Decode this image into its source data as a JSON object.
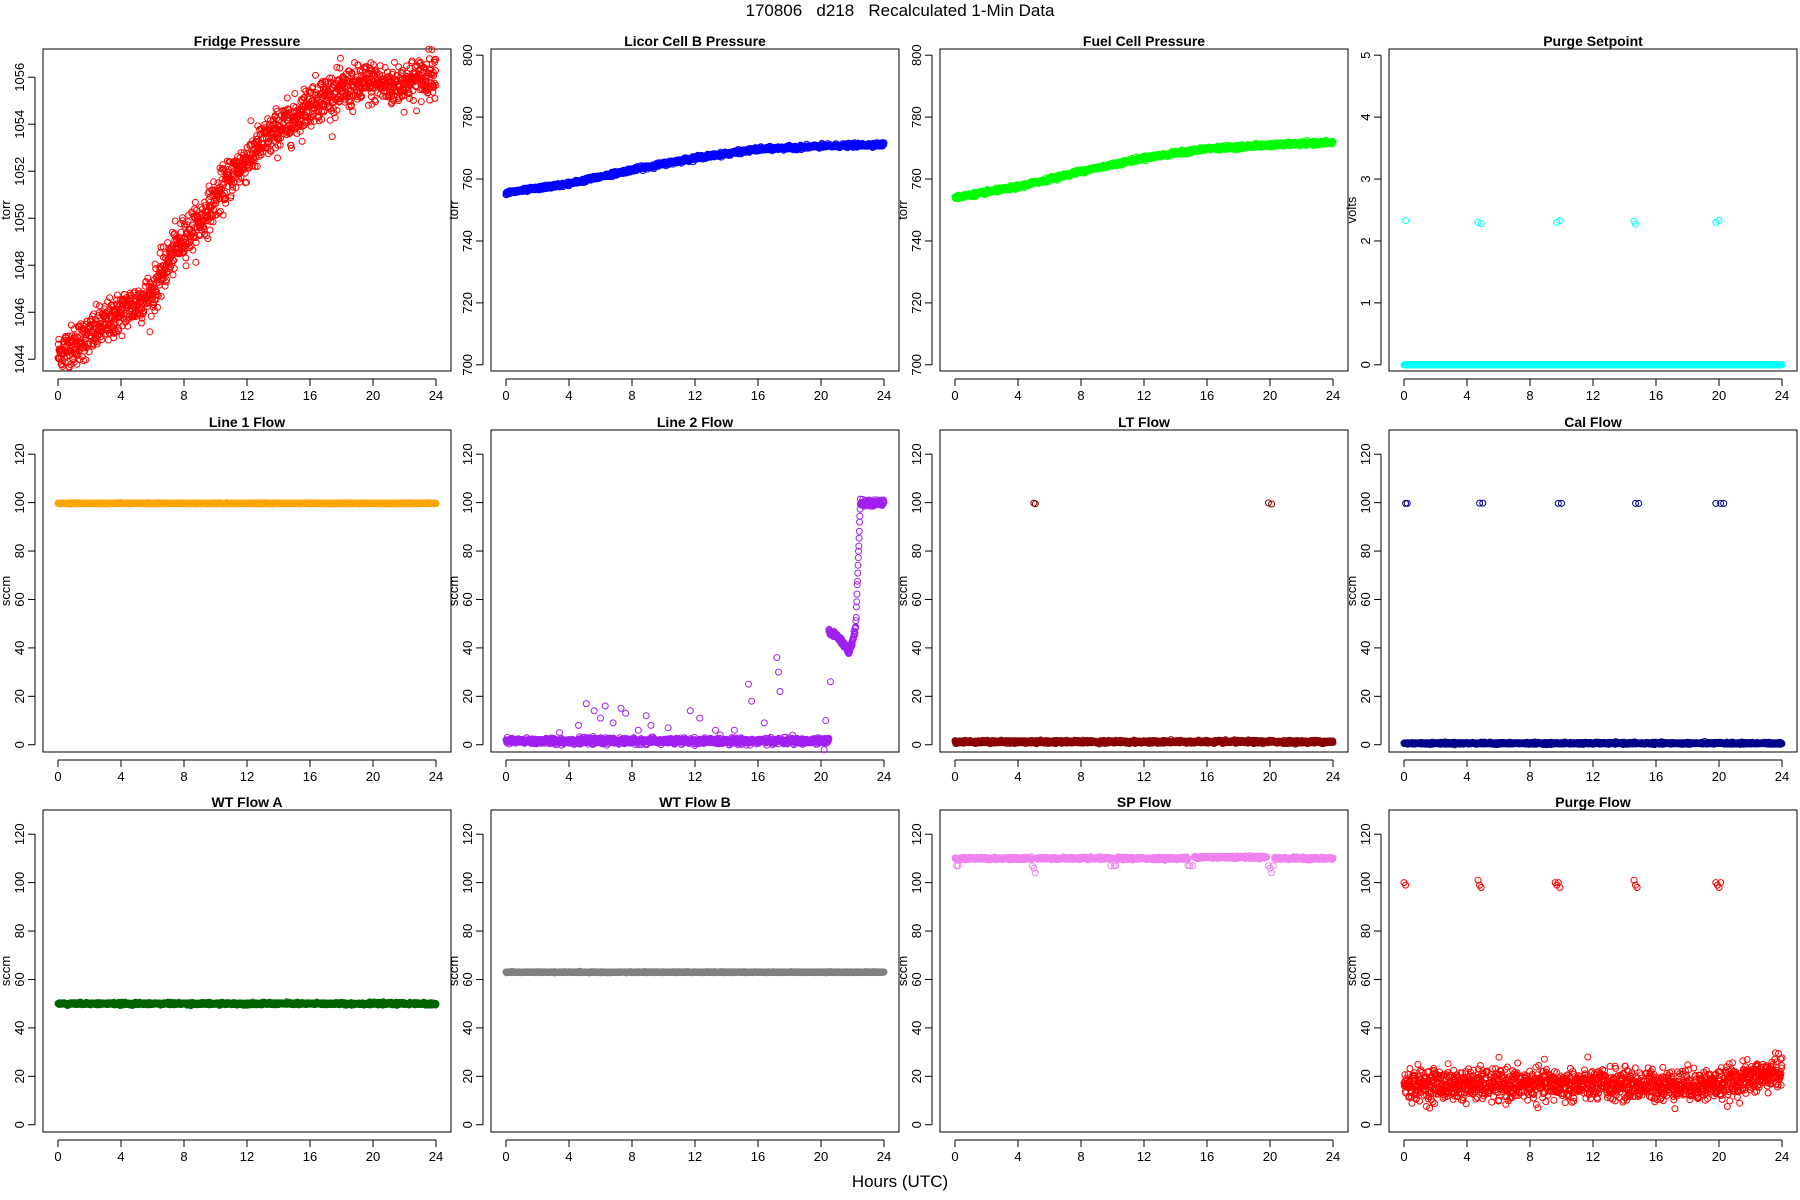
{
  "figure": {
    "title": "170806   d218   Recalculated 1-Min Data",
    "xlabel": "Hours (UTC)"
  },
  "chart_data": [
    {
      "type": "scatter",
      "title": "Fridge Pressure",
      "ylabel": "torr",
      "color": "#ff0000",
      "marker": "open-circle",
      "xlim": [
        0,
        24
      ],
      "xticks": [
        0,
        4,
        8,
        12,
        16,
        20,
        24
      ],
      "ylim": [
        1043.5,
        1057.2
      ],
      "yticks": [
        1044,
        1046,
        1048,
        1050,
        1052,
        1054,
        1056
      ],
      "series": [
        {
          "segments": [
            {
              "x": [
                0,
                2,
                4,
                6,
                7,
                8,
                9,
                10,
                11,
                12,
                13,
                14,
                15,
                16,
                17,
                18,
                19,
                20,
                21,
                22,
                23,
                24
              ],
              "y": [
                1044.2,
                1045.0,
                1046.0,
                1046.8,
                1048.2,
                1049.2,
                1049.8,
                1050.8,
                1051.8,
                1052.5,
                1053.2,
                1053.8,
                1054.2,
                1054.9,
                1055.2,
                1055.4,
                1055.6,
                1055.8,
                1055.6,
                1055.8,
                1055.9,
                1056.3
              ]
            }
          ],
          "noise": 0.45,
          "rare": []
        }
      ]
    },
    {
      "type": "scatter",
      "title": "Licor Cell B Pressure",
      "ylabel": "torr",
      "color": "#0000ff",
      "marker": "open-circle",
      "xlim": [
        0,
        24
      ],
      "xticks": [
        0,
        4,
        8,
        12,
        16,
        20,
        24
      ],
      "ylim": [
        698,
        802
      ],
      "yticks": [
        700,
        720,
        740,
        760,
        780,
        800
      ],
      "series": [
        {
          "segments": [
            {
              "x": [
                0,
                4,
                8,
                12,
                16,
                20,
                24
              ],
              "y": [
                755.5,
                758.5,
                763.0,
                766.8,
                769.6,
                770.6,
                771.2
              ]
            }
          ],
          "noise": 0.3,
          "rare": []
        }
      ]
    },
    {
      "type": "scatter",
      "title": "Fuel Cell Pressure",
      "ylabel": "torr",
      "color": "#00ff00",
      "marker": "open-circle",
      "xlim": [
        0,
        24
      ],
      "xticks": [
        0,
        4,
        8,
        12,
        16,
        20,
        24
      ],
      "ylim": [
        698,
        802
      ],
      "yticks": [
        700,
        720,
        740,
        760,
        780,
        800
      ],
      "series": [
        {
          "segments": [
            {
              "x": [
                0,
                4,
                8,
                12,
                16,
                20,
                24
              ],
              "y": [
                754.0,
                757.5,
                762.5,
                766.8,
                769.8,
                771.0,
                771.8
              ]
            }
          ],
          "noise": 0.3,
          "rare": []
        }
      ]
    },
    {
      "type": "scatter",
      "title": "Purge Setpoint",
      "ylabel": "volts",
      "color": "#00ffff",
      "marker": "open-circle",
      "xlim": [
        0,
        24
      ],
      "xticks": [
        0,
        4,
        8,
        12,
        16,
        20,
        24
      ],
      "ylim": [
        -0.1,
        5.1
      ],
      "yticks": [
        0,
        1,
        2,
        3,
        4,
        5
      ],
      "series": [
        {
          "segments": [
            {
              "x": [
                0,
                24
              ],
              "y": [
                0,
                0
              ]
            }
          ],
          "noise": 0,
          "rare": [
            [
              0.1,
              2.33
            ],
            [
              4.7,
              2.3
            ],
            [
              4.9,
              2.28
            ],
            [
              9.7,
              2.3
            ],
            [
              9.9,
              2.33
            ],
            [
              14.6,
              2.32
            ],
            [
              14.7,
              2.27
            ],
            [
              19.8,
              2.3
            ],
            [
              20.0,
              2.33
            ]
          ]
        }
      ]
    },
    {
      "type": "scatter",
      "title": "Line 1 Flow",
      "ylabel": "sccm",
      "color": "#ffa500",
      "marker": "open-circle",
      "xlim": [
        0,
        24
      ],
      "xticks": [
        0,
        4,
        8,
        12,
        16,
        20,
        24
      ],
      "ylim": [
        -3,
        130
      ],
      "yticks": [
        0,
        20,
        40,
        60,
        80,
        100,
        120
      ],
      "series": [
        {
          "segments": [
            {
              "x": [
                0,
                24
              ],
              "y": [
                99.7,
                99.7
              ]
            }
          ],
          "noise": 0.1,
          "rare": []
        }
      ]
    },
    {
      "type": "scatter",
      "title": "Line 2 Flow",
      "ylabel": "sccm",
      "color": "#a020f0",
      "marker": "open-circle",
      "xlim": [
        0,
        24
      ],
      "xticks": [
        0,
        4,
        8,
        12,
        16,
        20,
        24
      ],
      "ylim": [
        -3,
        130
      ],
      "yticks": [
        0,
        20,
        40,
        60,
        80,
        100,
        120
      ],
      "series": [
        {
          "segments": [
            {
              "x": [
                0,
                20.5
              ],
              "y": [
                1.5,
                1.5
              ]
            },
            {
              "x": [
                20.5,
                21.2,
                21.8,
                22.2
              ],
              "y": [
                47,
                44,
                38,
                48
              ]
            },
            {
              "x": [
                22.2,
                22.5
              ],
              "y": [
                48,
                100
              ]
            },
            {
              "x": [
                22.5,
                24
              ],
              "y": [
                99.8,
                99.8
              ]
            }
          ],
          "noise": 0.6,
          "rare": [
            [
              3.4,
              5
            ],
            [
              4.6,
              8
            ],
            [
              5.1,
              17
            ],
            [
              5.6,
              14
            ],
            [
              6.0,
              11
            ],
            [
              6.3,
              16
            ],
            [
              6.8,
              9
            ],
            [
              7.3,
              15
            ],
            [
              7.6,
              13
            ],
            [
              8.4,
              6
            ],
            [
              8.9,
              12
            ],
            [
              9.2,
              8
            ],
            [
              10.3,
              7
            ],
            [
              11.7,
              14
            ],
            [
              12.3,
              11
            ],
            [
              13.3,
              6
            ],
            [
              14.5,
              6
            ],
            [
              15.4,
              25
            ],
            [
              15.6,
              18
            ],
            [
              16.4,
              9
            ],
            [
              17.2,
              36
            ],
            [
              17.3,
              30
            ],
            [
              17.4,
              22
            ],
            [
              18.2,
              4
            ],
            [
              20.2,
              -2
            ],
            [
              20.3,
              10
            ],
            [
              20.6,
              26
            ]
          ]
        }
      ]
    },
    {
      "type": "scatter",
      "title": "LT Flow",
      "ylabel": "sccm",
      "color": "#8b0000",
      "marker": "open-circle",
      "xlim": [
        0,
        24
      ],
      "xticks": [
        0,
        4,
        8,
        12,
        16,
        20,
        24
      ],
      "ylim": [
        -3,
        130
      ],
      "yticks": [
        0,
        20,
        40,
        60,
        80,
        100,
        120
      ],
      "series": [
        {
          "segments": [
            {
              "x": [
                0,
                24
              ],
              "y": [
                1.2,
                1.2
              ]
            }
          ],
          "noise": 0.3,
          "rare": [
            [
              5.0,
              99.8
            ],
            [
              5.1,
              99.5
            ],
            [
              19.9,
              99.9
            ],
            [
              20.1,
              99.4
            ]
          ]
        }
      ]
    },
    {
      "type": "scatter",
      "title": "Cal Flow",
      "ylabel": "sccm",
      "color": "#00008b",
      "marker": "open-circle",
      "xlim": [
        0,
        24
      ],
      "xticks": [
        0,
        4,
        8,
        12,
        16,
        20,
        24
      ],
      "ylim": [
        -3,
        130
      ],
      "yticks": [
        0,
        20,
        40,
        60,
        80,
        100,
        120
      ],
      "series": [
        {
          "segments": [
            {
              "x": [
                0,
                24
              ],
              "y": [
                0.6,
                0.6
              ]
            }
          ],
          "noise": 0.2,
          "rare": [
            [
              0.1,
              99.7
            ],
            [
              0.2,
              99.7
            ],
            [
              4.8,
              99.8
            ],
            [
              5.0,
              99.8
            ],
            [
              9.8,
              99.7
            ],
            [
              10.0,
              99.7
            ],
            [
              14.7,
              99.7
            ],
            [
              14.9,
              99.7
            ],
            [
              19.8,
              99.7
            ],
            [
              20.1,
              99.7
            ],
            [
              20.3,
              99.7
            ]
          ]
        }
      ]
    },
    {
      "type": "scatter",
      "title": "WT Flow A",
      "ylabel": "sccm",
      "color": "#006400",
      "marker": "open-circle",
      "xlim": [
        0,
        24
      ],
      "xticks": [
        0,
        4,
        8,
        12,
        16,
        20,
        24
      ],
      "ylim": [
        -3,
        130
      ],
      "yticks": [
        0,
        20,
        40,
        60,
        80,
        100,
        120
      ],
      "series": [
        {
          "segments": [
            {
              "x": [
                0,
                24
              ],
              "y": [
                50.0,
                50.0
              ]
            }
          ],
          "noise": 0.25,
          "rare": []
        }
      ]
    },
    {
      "type": "scatter",
      "title": "WT Flow B",
      "ylabel": "sccm",
      "color": "#808080",
      "marker": "open-circle",
      "xlim": [
        0,
        24
      ],
      "xticks": [
        0,
        4,
        8,
        12,
        16,
        20,
        24
      ],
      "ylim": [
        -3,
        130
      ],
      "yticks": [
        0,
        20,
        40,
        60,
        80,
        100,
        120
      ],
      "series": [
        {
          "segments": [
            {
              "x": [
                0,
                24
              ],
              "y": [
                63.0,
                63.0
              ]
            }
          ],
          "noise": 0.1,
          "rare": []
        }
      ]
    },
    {
      "type": "scatter",
      "title": "SP Flow",
      "ylabel": "sccm",
      "color": "#ee82ee",
      "marker": "open-circle",
      "xlim": [
        0,
        24
      ],
      "xticks": [
        0,
        4,
        8,
        12,
        16,
        20,
        24
      ],
      "ylim": [
        -3,
        130
      ],
      "yticks": [
        0,
        20,
        40,
        60,
        80,
        100,
        120
      ],
      "series": [
        {
          "segments": [
            {
              "x": [
                0,
                4.9
              ],
              "y": [
                110,
                110
              ]
            },
            {
              "x": [
                5.2,
                10
              ],
              "y": [
                110,
                110
              ]
            },
            {
              "x": [
                10.3,
                14.8
              ],
              "y": [
                110,
                110
              ]
            },
            {
              "x": [
                15.2,
                19.8
              ],
              "y": [
                110.5,
                110.5
              ]
            },
            {
              "x": [
                20.3,
                24
              ],
              "y": [
                110,
                110
              ]
            }
          ],
          "noise": 0.25,
          "rare": [
            [
              0.1,
              107
            ],
            [
              0.2,
              107
            ],
            [
              4.9,
              107
            ],
            [
              5.0,
              106
            ],
            [
              5.1,
              104
            ],
            [
              9.9,
              107
            ],
            [
              10.1,
              107
            ],
            [
              10.2,
              107
            ],
            [
              14.8,
              107
            ],
            [
              14.9,
              107
            ],
            [
              15.1,
              107
            ],
            [
              19.9,
              107
            ],
            [
              20.0,
              106
            ],
            [
              20.1,
              104
            ],
            [
              20.2,
              107
            ]
          ]
        }
      ]
    },
    {
      "type": "scatter",
      "title": "Purge Flow",
      "ylabel": "sccm",
      "color": "#ff0000",
      "marker": "open-circle",
      "xlim": [
        0,
        24
      ],
      "xticks": [
        0,
        4,
        8,
        12,
        16,
        20,
        24
      ],
      "ylim": [
        -3,
        130
      ],
      "yticks": [
        0,
        20,
        40,
        60,
        80,
        100,
        120
      ],
      "series": [
        {
          "segments": [
            {
              "x": [
                0,
                20,
                24
              ],
              "y": [
                16.5,
                16.5,
                22
              ]
            }
          ],
          "noise": 3.2,
          "rare": [
            [
              0.0,
              100
            ],
            [
              0.1,
              99
            ],
            [
              4.7,
              101
            ],
            [
              4.8,
              99
            ],
            [
              4.9,
              98
            ],
            [
              9.6,
              100
            ],
            [
              9.7,
              99
            ],
            [
              9.8,
              100
            ],
            [
              9.9,
              98
            ],
            [
              14.6,
              101
            ],
            [
              14.7,
              99
            ],
            [
              14.8,
              98
            ],
            [
              19.8,
              100
            ],
            [
              19.9,
              99
            ],
            [
              20.0,
              98
            ],
            [
              20.1,
              100
            ]
          ]
        }
      ]
    }
  ]
}
